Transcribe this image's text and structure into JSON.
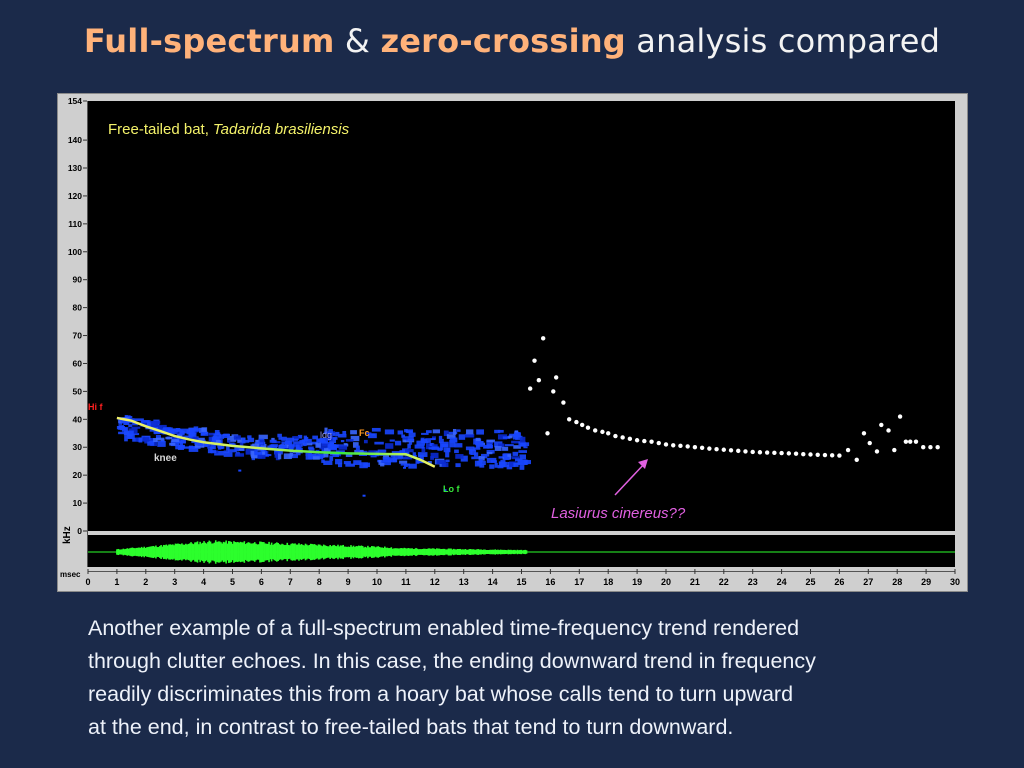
{
  "slide": {
    "title_part1": "Full-spectrum",
    "title_amp": " & ",
    "title_part2": "zero-crossing",
    "title_part3": " analysis compared",
    "caption_lines": [
      "Another example of a full-spectrum enabled time-frequency trend rendered",
      "through clutter echoes. In this case, the ending downward trend in frequency",
      "readily discriminates this from a hoary bat whose calls tend to turn upward",
      "at the end, in contrast to free-tailed bats that tend to turn downward."
    ]
  },
  "colors": {
    "background": "#1b2a4a",
    "title_highlight": "#ffb27a",
    "spectrogram_blue": "#1846ff",
    "trend_yellow": "#f4f26a",
    "trend_green": "#36e83a",
    "dot_white": "#ffffff",
    "annotation_pink": "#e060e0",
    "waveform_green": "#2cff2c"
  },
  "chart_data": {
    "type": "scatter",
    "ylabel": "kHz",
    "xlabel": "msec",
    "ylim": [
      0,
      154
    ],
    "xlim": [
      0,
      30
    ],
    "y_ticks": [
      "154",
      "140",
      "130",
      "120",
      "110",
      "100",
      "90",
      "80",
      "70",
      "60",
      "50",
      "40",
      "30",
      "20",
      "10",
      "0"
    ],
    "x_ticks": [
      "0",
      "1",
      "2",
      "3",
      "4",
      "5",
      "6",
      "7",
      "8",
      "9",
      "10",
      "11",
      "12",
      "13",
      "14",
      "15",
      "16",
      "17",
      "18",
      "19",
      "20",
      "21",
      "22",
      "23",
      "24",
      "25",
      "26",
      "27",
      "28",
      "29",
      "30"
    ],
    "species_label": "Free-tailed bat,",
    "species_latin": "Tadarida brasiliensis",
    "annotation": "Lasiurus cinereus??",
    "markers": {
      "hi_f": "Hi f",
      "lo_f": "Lo f",
      "fc": "Fc",
      "ldg": "ldg",
      "knee": "knee"
    },
    "trend_series": {
      "x": [
        1.0,
        1.5,
        2.0,
        2.5,
        3.0,
        3.5,
        4.0,
        5.0,
        6.0,
        7.0,
        8.0,
        9.0,
        10.0,
        11.0,
        11.5,
        12.0
      ],
      "y": [
        40.5,
        39.5,
        37.5,
        35.8,
        34.0,
        32.8,
        31.8,
        30.5,
        29.6,
        28.8,
        28.2,
        27.8,
        27.6,
        27.5,
        25.5,
        23.0
      ]
    },
    "zero_crossing_series": {
      "x": [
        15.3,
        15.45,
        15.6,
        15.75,
        15.9,
        16.1,
        16.2,
        16.45,
        16.65,
        16.9,
        17.1,
        17.3,
        17.55,
        17.8,
        18.0,
        18.25,
        18.5,
        18.75,
        19.0,
        19.25,
        19.5,
        19.75,
        20.0,
        20.25,
        20.5,
        20.75,
        21.0,
        21.25,
        21.5,
        21.75,
        22.0,
        22.25,
        22.5,
        22.75,
        23.0,
        23.25,
        23.5,
        23.75,
        24.0,
        24.25,
        24.5,
        24.75,
        25.0,
        25.25,
        25.5,
        25.75,
        26.0,
        26.3,
        26.6,
        26.85,
        27.05,
        27.3,
        27.45,
        27.7,
        27.9,
        28.1,
        28.3,
        28.45,
        28.65,
        28.9,
        29.15,
        29.4
      ],
      "y": [
        51,
        61,
        54,
        69,
        35,
        50,
        55,
        46,
        40,
        39,
        38,
        37,
        36,
        35.5,
        35,
        34,
        33.5,
        33,
        32.5,
        32.2,
        32,
        31.5,
        31,
        30.7,
        30.5,
        30.3,
        30,
        29.8,
        29.5,
        29.3,
        29.1,
        28.9,
        28.7,
        28.5,
        28.3,
        28.2,
        28.1,
        28,
        27.9,
        27.8,
        27.7,
        27.5,
        27.4,
        27.3,
        27.2,
        27.1,
        27,
        29,
        25.5,
        35,
        31.5,
        28.5,
        38,
        36,
        29,
        41,
        32,
        32,
        32,
        30,
        30,
        30
      ]
    }
  }
}
